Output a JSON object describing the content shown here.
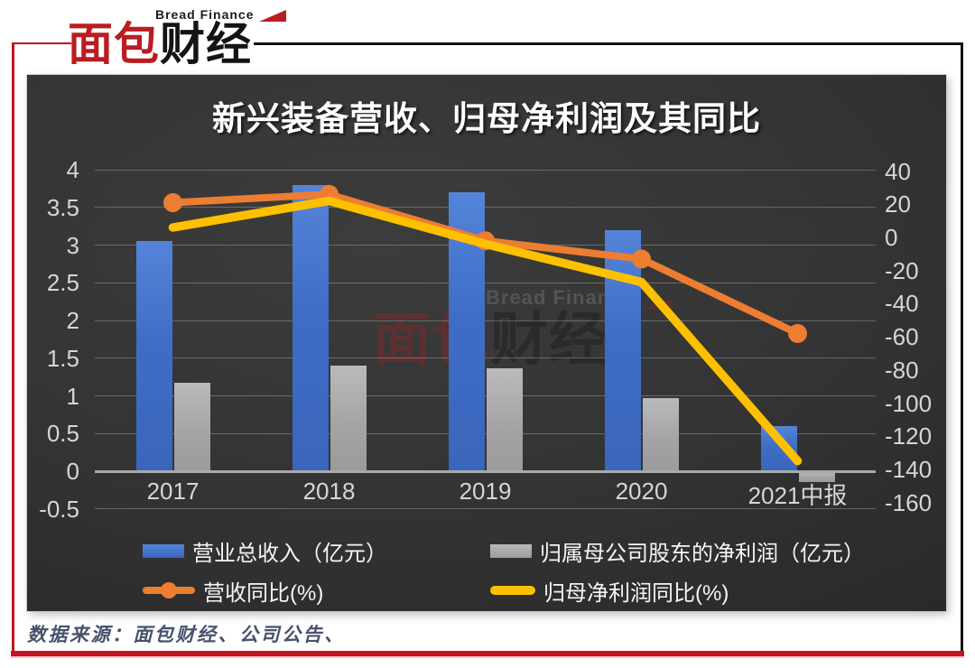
{
  "logo": {
    "tagline": "Bread Finance",
    "name_red": "面包",
    "name_black": "财经"
  },
  "watermark": {
    "tagline": "Bread Finance",
    "name_red": "面包",
    "name_black": "财经"
  },
  "source_note": "数据来源：面包财经、公司公告、",
  "chart_data": {
    "type": "bar+line",
    "title": "新兴装备营收、归母净利润及其同比",
    "categories": [
      "2017",
      "2018",
      "2019",
      "2020",
      "2021中报"
    ],
    "series": [
      {
        "name": "营业总收入（亿元）",
        "type": "bar",
        "axis": "left",
        "color": "#4472C4",
        "values": [
          3.05,
          3.8,
          3.7,
          3.2,
          0.6
        ]
      },
      {
        "name": "归属母公司股东的净利润（亿元）",
        "type": "bar",
        "axis": "left",
        "color": "#A6A6A6",
        "values": [
          1.17,
          1.4,
          1.37,
          0.97,
          -0.14
        ]
      },
      {
        "name": "营收同比(%)",
        "type": "line",
        "axis": "right",
        "color": "#ED7D31",
        "marker": true,
        "values": [
          21,
          26,
          -2,
          -13,
          -58
        ]
      },
      {
        "name": "归母净利润同比(%)",
        "type": "line",
        "axis": "right",
        "color": "#FFC000",
        "marker": false,
        "values": [
          6,
          22,
          -4,
          -27,
          -135
        ]
      }
    ],
    "left_axis": {
      "min": -0.5,
      "max": 4,
      "ticks": [
        4,
        3.5,
        3,
        2.5,
        2,
        1.5,
        1,
        0.5,
        0,
        -0.5
      ]
    },
    "right_axis": {
      "min": -160,
      "max": 40,
      "ticks": [
        40,
        20,
        0,
        -20,
        -40,
        -60,
        -80,
        -100,
        -120,
        -140,
        -160
      ]
    },
    "grid": true,
    "legend_position": "bottom"
  }
}
